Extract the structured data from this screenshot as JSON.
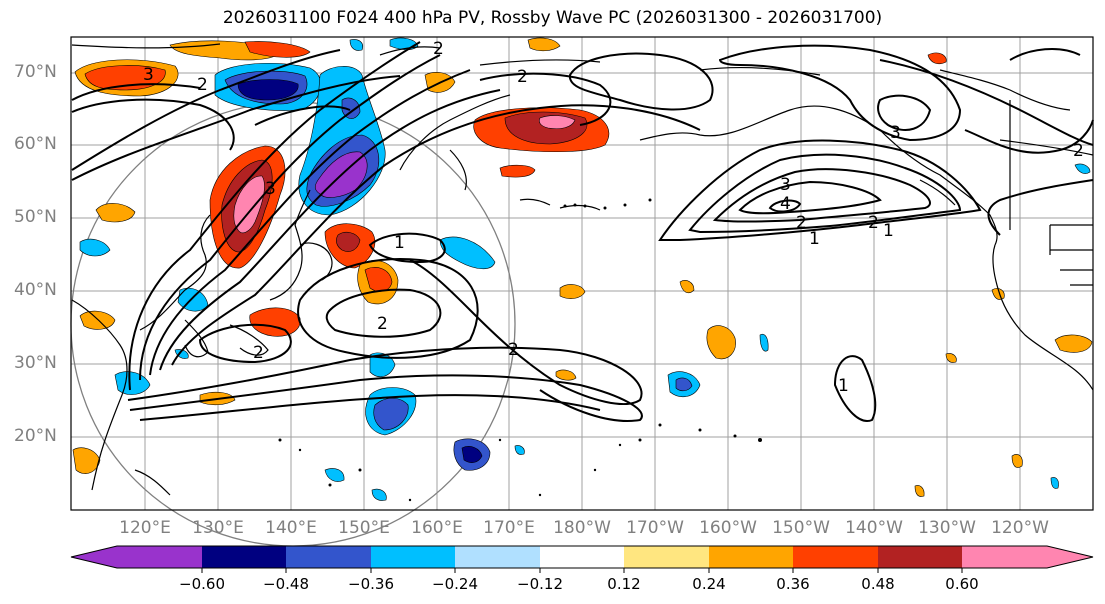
{
  "title": "2026031100 F024 400 hPa PV, Rossby Wave PC (2026031300 - 2026031700)",
  "latitude_labels": [
    "70°N",
    "60°N",
    "50°N",
    "40°N",
    "30°N",
    "20°N"
  ],
  "longitude_labels": [
    "120°E",
    "130°E",
    "140°E",
    "150°E",
    "160°E",
    "170°E",
    "180°W",
    "170°W",
    "160°W",
    "150°W",
    "140°W",
    "130°W",
    "120°W"
  ],
  "colorbar": {
    "ticks": [
      "−0.60",
      "−0.48",
      "−0.36",
      "−0.24",
      "−0.12",
      "0.12",
      "0.24",
      "0.36",
      "0.48",
      "0.60"
    ],
    "colors": [
      "#9933cc",
      "#000080",
      "#3355cc",
      "#00bfff",
      "#b0e0ff",
      "#ffffff",
      "#ffe680",
      "#ffa500",
      "#ff4000",
      "#b22222",
      "#ff85b0"
    ]
  },
  "contour_labels": [
    "3",
    "2",
    "2",
    "2",
    "3",
    "3",
    "4",
    "2",
    "2",
    "1",
    "1",
    "1",
    "2",
    "2",
    "2",
    "1",
    "2",
    "3"
  ]
}
